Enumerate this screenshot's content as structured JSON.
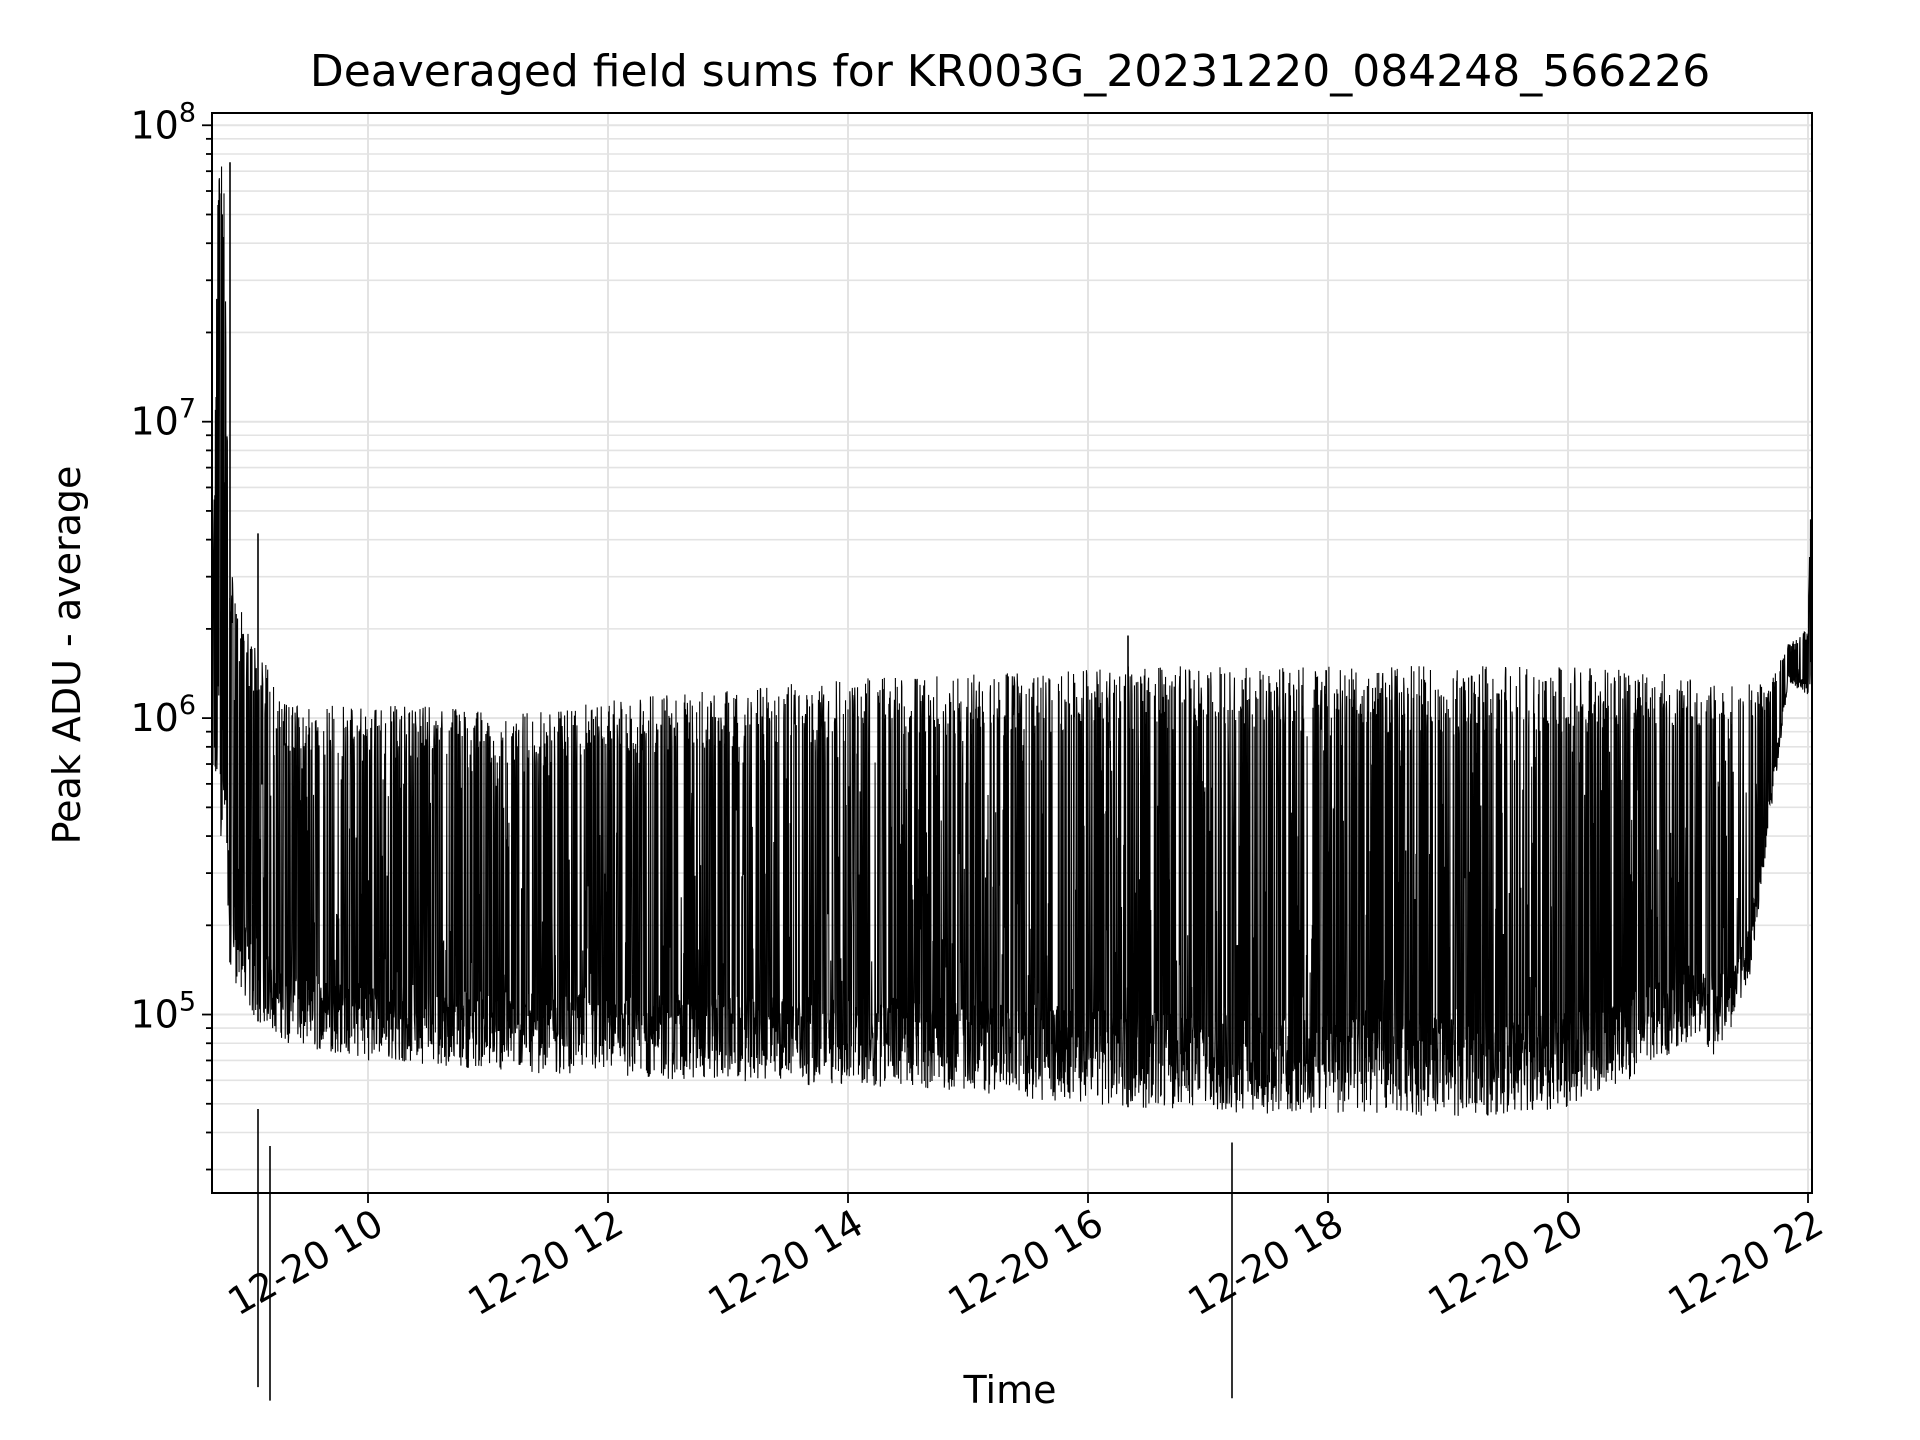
{
  "chart_data": {
    "type": "line",
    "title": "Deaveraged field sums for KR003G_20231220_084248_566226",
    "xlabel": "Time",
    "ylabel": "Peak ADU - average",
    "x_axis": {
      "kind": "datetime",
      "range": [
        "2023-12-20 08:42",
        "2023-12-20 22:02"
      ],
      "ticks": [
        "2023-12-20 10:00",
        "2023-12-20 12:00",
        "2023-12-20 14:00",
        "2023-12-20 16:00",
        "2023-12-20 18:00",
        "2023-12-20 20:00",
        "2023-12-20 22:00"
      ],
      "tick_labels": [
        "12-20 10",
        "12-20 12",
        "12-20 14",
        "12-20 16",
        "12-20 18",
        "12-20 20",
        "12-20 22"
      ]
    },
    "y_axis": {
      "scale": "log",
      "range": [
        25000,
        110000000
      ],
      "ticks": [
        100000,
        1000000,
        10000000,
        100000000
      ],
      "tick_labels": [
        {
          "base": "10",
          "exp": "5"
        },
        {
          "base": "10",
          "exp": "6"
        },
        {
          "base": "10",
          "exp": "7"
        },
        {
          "base": "10",
          "exp": "8"
        }
      ]
    },
    "grid": true,
    "legend": "none",
    "line_color": "#000000",
    "envelope": {
      "x": [
        "2023-12-20 08:42",
        "2023-12-20 08:45",
        "2023-12-20 08:48",
        "2023-12-20 08:51",
        "2023-12-20 08:55",
        "2023-12-20 09:00",
        "2023-12-20 09:10",
        "2023-12-20 09:20",
        "2023-12-20 09:35",
        "2023-12-20 10:00",
        "2023-12-20 10:30",
        "2023-12-20 11:00",
        "2023-12-20 11:30",
        "2023-12-20 12:00",
        "2023-12-20 12:30",
        "2023-12-20 13:00",
        "2023-12-20 13:30",
        "2023-12-20 14:00",
        "2023-12-20 14:30",
        "2023-12-20 15:00",
        "2023-12-20 15:30",
        "2023-12-20 16:00",
        "2023-12-20 16:30",
        "2023-12-20 17:00",
        "2023-12-20 17:30",
        "2023-12-20 18:00",
        "2023-12-20 18:30",
        "2023-12-20 19:00",
        "2023-12-20 19:30",
        "2023-12-20 20:00",
        "2023-12-20 20:30",
        "2023-12-20 21:00",
        "2023-12-20 21:15",
        "2023-12-20 21:30",
        "2023-12-20 21:40",
        "2023-12-20 21:50",
        "2023-12-20 22:00",
        "2023-12-20 22:02"
      ],
      "high": [
        1500000,
        70000000,
        75000000,
        3500000,
        2500000,
        2000000,
        1500000,
        1100000,
        1100000,
        1100000,
        1100000,
        1050000,
        1050000,
        1150000,
        1200000,
        1250000,
        1300000,
        1350000,
        1400000,
        1400000,
        1450000,
        1500000,
        1500000,
        1500000,
        1500000,
        1500000,
        1500000,
        1500000,
        1500000,
        1500000,
        1450000,
        1400000,
        1350000,
        1300000,
        1300000,
        1800000,
        2000000,
        11000000
      ],
      "low": [
        500000,
        500000,
        300000,
        150000,
        120000,
        100000,
        90000,
        80000,
        75000,
        70000,
        68000,
        65000,
        63000,
        62000,
        60000,
        60000,
        58000,
        57000,
        57000,
        55000,
        52000,
        50000,
        48000,
        47000,
        46000,
        46000,
        46000,
        45000,
        46000,
        48000,
        60000,
        80000,
        70000,
        120000,
        400000,
        1300000,
        1200000,
        1300000
      ]
    },
    "notable_points": [
      {
        "x": "2023-12-20 08:51",
        "y": 75000000
      },
      {
        "x": "2023-12-20 09:05",
        "y": 4200000
      },
      {
        "x": "2023-12-20 09:05",
        "y": 48000
      },
      {
        "x": "2023-12-20 09:11",
        "y": 36000
      },
      {
        "x": "2023-12-20 16:20",
        "y": 1900000
      },
      {
        "x": "2023-12-20 17:12",
        "y": 37000
      },
      {
        "x": "2023-12-20 22:02",
        "y": 11000000
      }
    ]
  }
}
